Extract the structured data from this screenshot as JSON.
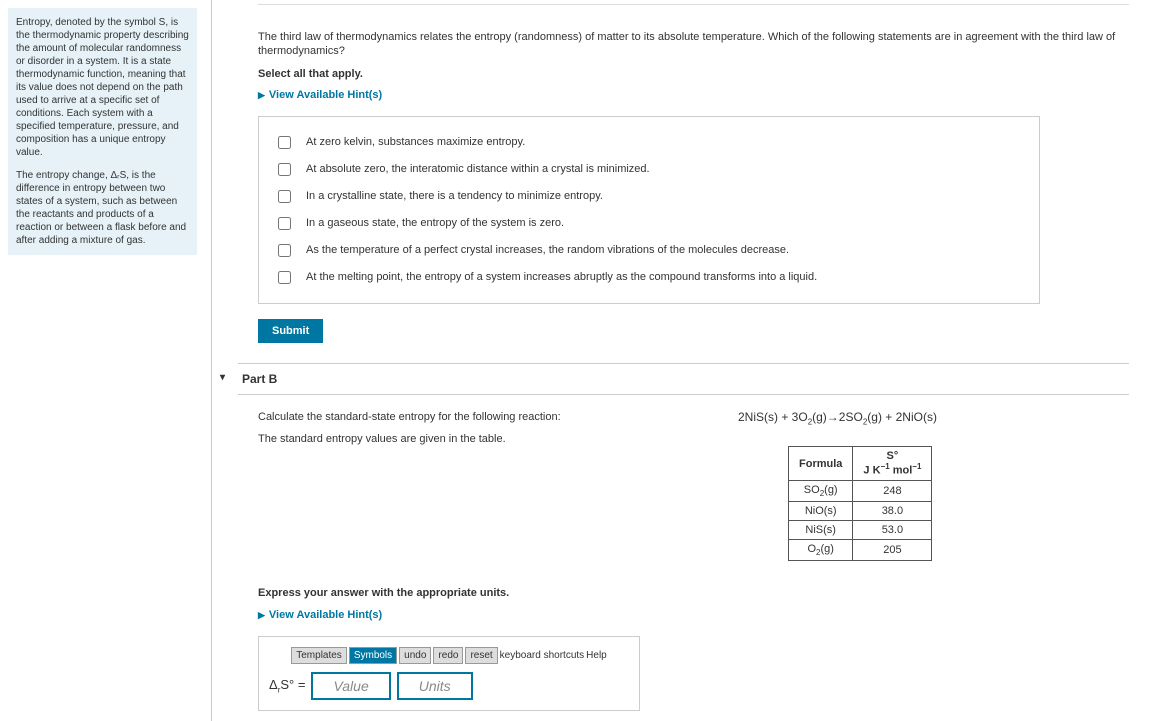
{
  "sidebar": {
    "para1": "Entropy, denoted by the symbol S, is the thermodynamic property describing the amount of molecular randomness or disorder in a system. It is a state thermodynamic function, meaning that its value does not depend on the path used to arrive at a specific set of conditions. Each system with a specified temperature, pressure, and composition has a unique entropy value.",
    "para2": "The entropy change, ΔᵣS, is the difference in entropy between two states of a system, such as between the reactants and products of a reaction or between a flask before and after adding a mixture of gas."
  },
  "question": {
    "prompt": "The third law of thermodynamics relates the entropy (randomness) of matter to its absolute temperature. Which of the following statements are in agreement with the third law of thermodynamics?",
    "select": "Select all that apply.",
    "hints": "View Available Hint(s)",
    "options": [
      "At zero kelvin, substances maximize entropy.",
      "At absolute zero, the interatomic distance within a crystal is minimized.",
      "In a crystalline state, there is a tendency to minimize entropy.",
      "In a gaseous state, the entropy of the system is zero.",
      "As the temperature of a perfect crystal increases, the random vibrations of the molecules decrease.",
      "At the melting point, the entropy of a system increases abruptly as the compound transforms into a liquid."
    ],
    "submit": "Submit"
  },
  "partB": {
    "title": "Part B",
    "calc": "Calculate the standard-state entropy for the following reaction:",
    "tableNote": "The standard entropy values are given in the table.",
    "reaction_html": "2NiS(s) + 3O<sub>2</sub>(g)→2SO<sub>2</sub>(g) + 2NiO(s)",
    "table": {
      "h1": "Formula",
      "h2_html": "S°<br>J K<sup>−1</sup> mol<sup>−1</sup>",
      "rows": [
        {
          "f": "SO<sub>2</sub>(g)",
          "v": "248"
        },
        {
          "f": "NiO(s)",
          "v": "38.0"
        },
        {
          "f": "NiS(s)",
          "v": "53.0"
        },
        {
          "f": "O<sub>2</sub>(g)",
          "v": "205"
        }
      ]
    },
    "express": "Express your answer with the appropriate units.",
    "hints": "View Available Hint(s)",
    "toolbar": {
      "templates": "Templates",
      "symbols": "Symbols",
      "undo": "undo",
      "redo": "redo",
      "reset": "reset",
      "kbd": "keyboard shortcuts",
      "help": "Help"
    },
    "answer": {
      "label_html": "Δ<sub>r</sub>S° =",
      "value": "Value",
      "units": "Units"
    }
  }
}
